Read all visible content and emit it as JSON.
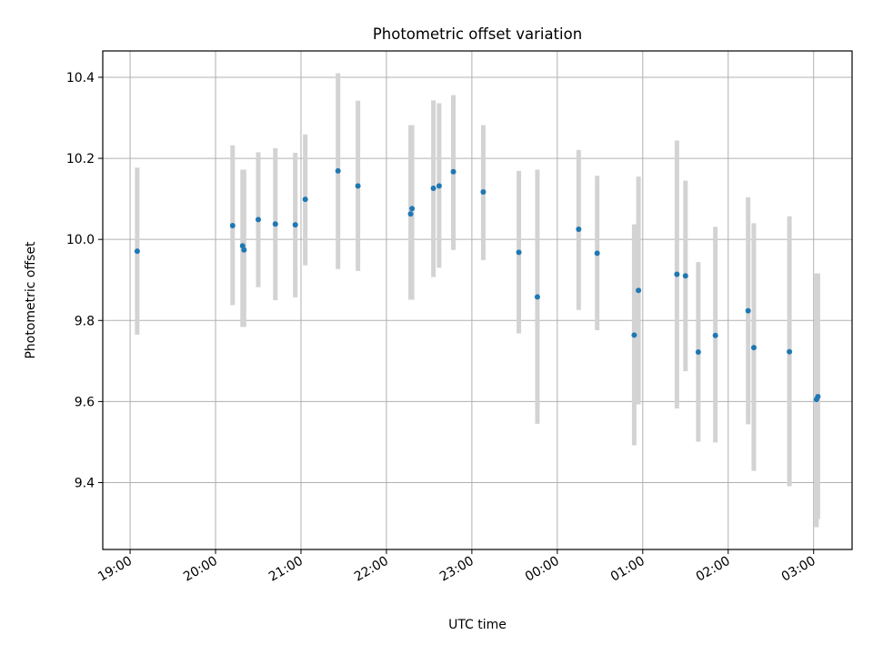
{
  "chart_data": {
    "type": "scatter",
    "title": "Photometric offset variation",
    "xlabel": "UTC time",
    "ylabel": "Photometric offset",
    "x_axis_kind": "time",
    "x_range_hours": [
      18.68,
      27.45
    ],
    "ylim": [
      9.235,
      10.465
    ],
    "x_ticks": [
      {
        "label": "19:00",
        "hour": 19
      },
      {
        "label": "20:00",
        "hour": 20
      },
      {
        "label": "21:00",
        "hour": 21
      },
      {
        "label": "22:00",
        "hour": 22
      },
      {
        "label": "23:00",
        "hour": 23
      },
      {
        "label": "00:00",
        "hour": 24
      },
      {
        "label": "01:00",
        "hour": 25
      },
      {
        "label": "02:00",
        "hour": 26
      },
      {
        "label": "03:00",
        "hour": 27
      }
    ],
    "y_ticks": [
      {
        "label": "9.4",
        "value": 9.4
      },
      {
        "label": "9.6",
        "value": 9.6
      },
      {
        "label": "9.8",
        "value": 9.8
      },
      {
        "label": "10.0",
        "value": 10.0
      },
      {
        "label": "10.2",
        "value": 10.2
      },
      {
        "label": "10.4",
        "value": 10.4
      }
    ],
    "grid": true,
    "point_color": "#1f77b4",
    "errorbar_color": "#d3d3d3",
    "points": [
      {
        "time": "19:05",
        "y": 9.971,
        "lo": 9.765,
        "hi": 10.177
      },
      {
        "time": "20:12",
        "y": 10.034,
        "lo": 9.838,
        "hi": 10.232
      },
      {
        "time": "20:19",
        "y": 9.984,
        "lo": 9.784,
        "hi": 10.172
      },
      {
        "time": "20:20",
        "y": 9.974,
        "lo": 9.784,
        "hi": 10.172
      },
      {
        "time": "20:30",
        "y": 10.049,
        "lo": 9.882,
        "hi": 10.215
      },
      {
        "time": "20:42",
        "y": 10.038,
        "lo": 9.85,
        "hi": 10.225
      },
      {
        "time": "20:56",
        "y": 10.036,
        "lo": 9.857,
        "hi": 10.214
      },
      {
        "time": "21:03",
        "y": 10.099,
        "lo": 9.936,
        "hi": 10.259
      },
      {
        "time": "21:26",
        "y": 10.169,
        "lo": 9.927,
        "hi": 10.41
      },
      {
        "time": "21:40",
        "y": 10.132,
        "lo": 9.922,
        "hi": 10.342
      },
      {
        "time": "22:17",
        "y": 10.063,
        "lo": 9.851,
        "hi": 10.282
      },
      {
        "time": "22:18",
        "y": 10.076,
        "lo": 9.851,
        "hi": 10.282
      },
      {
        "time": "22:33",
        "y": 10.126,
        "lo": 9.907,
        "hi": 10.343
      },
      {
        "time": "22:37",
        "y": 10.132,
        "lo": 9.93,
        "hi": 10.336
      },
      {
        "time": "22:47",
        "y": 10.167,
        "lo": 9.974,
        "hi": 10.356
      },
      {
        "time": "23:08",
        "y": 10.117,
        "lo": 9.949,
        "hi": 10.282
      },
      {
        "time": "23:33",
        "y": 9.968,
        "lo": 9.768,
        "hi": 10.169
      },
      {
        "time": "23:46",
        "y": 9.858,
        "lo": 9.545,
        "hi": 10.172
      },
      {
        "time": "00:15",
        "y": 10.025,
        "lo": 9.826,
        "hi": 10.221
      },
      {
        "time": "00:28",
        "y": 9.966,
        "lo": 9.776,
        "hi": 10.157
      },
      {
        "time": "00:54",
        "y": 9.764,
        "lo": 9.492,
        "hi": 10.037
      },
      {
        "time": "00:57",
        "y": 9.874,
        "lo": 9.593,
        "hi": 10.155
      },
      {
        "time": "01:24",
        "y": 9.914,
        "lo": 9.583,
        "hi": 10.244
      },
      {
        "time": "01:30",
        "y": 9.91,
        "lo": 9.675,
        "hi": 10.145
      },
      {
        "time": "01:39",
        "y": 9.722,
        "lo": 9.501,
        "hi": 9.944
      },
      {
        "time": "01:51",
        "y": 9.763,
        "lo": 9.499,
        "hi": 10.031
      },
      {
        "time": "02:14",
        "y": 9.824,
        "lo": 9.544,
        "hi": 10.104
      },
      {
        "time": "02:18",
        "y": 9.733,
        "lo": 9.429,
        "hi": 10.04
      },
      {
        "time": "02:43",
        "y": 9.723,
        "lo": 9.391,
        "hi": 10.057
      },
      {
        "time": "03:02",
        "y": 9.605,
        "lo": 9.29,
        "hi": 9.916
      },
      {
        "time": "03:03",
        "y": 9.612,
        "lo": 9.31,
        "hi": 9.916
      }
    ]
  }
}
